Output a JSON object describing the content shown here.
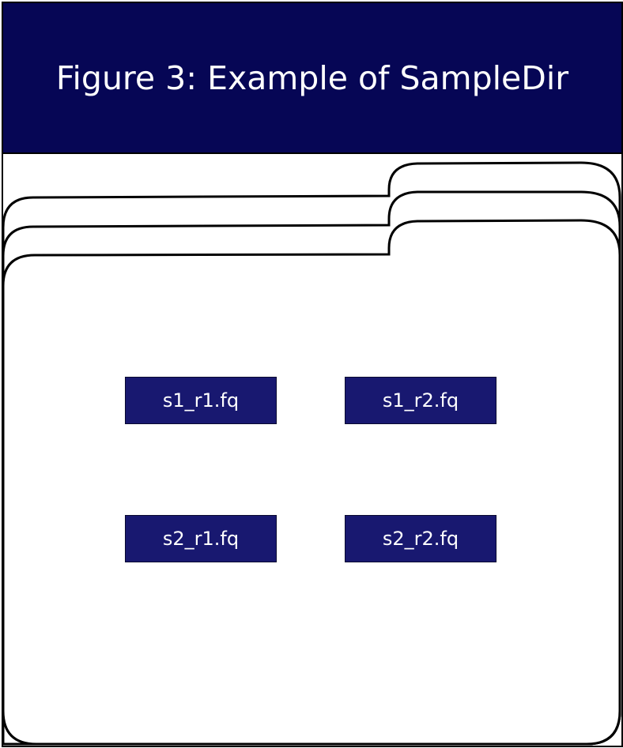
{
  "figure": {
    "title": "Figure 3: Example of SampleDir"
  },
  "files": [
    {
      "label": "s1_r1.fq"
    },
    {
      "label": "s1_r2.fq"
    },
    {
      "label": "s2_r1.fq"
    },
    {
      "label": "s2_r2.fq"
    }
  ],
  "icons": {
    "folder": "folder-icon"
  },
  "colors": {
    "header_bg": "#060655",
    "file_bg": "#181870",
    "text": "#ffffff",
    "outline": "#000000"
  }
}
